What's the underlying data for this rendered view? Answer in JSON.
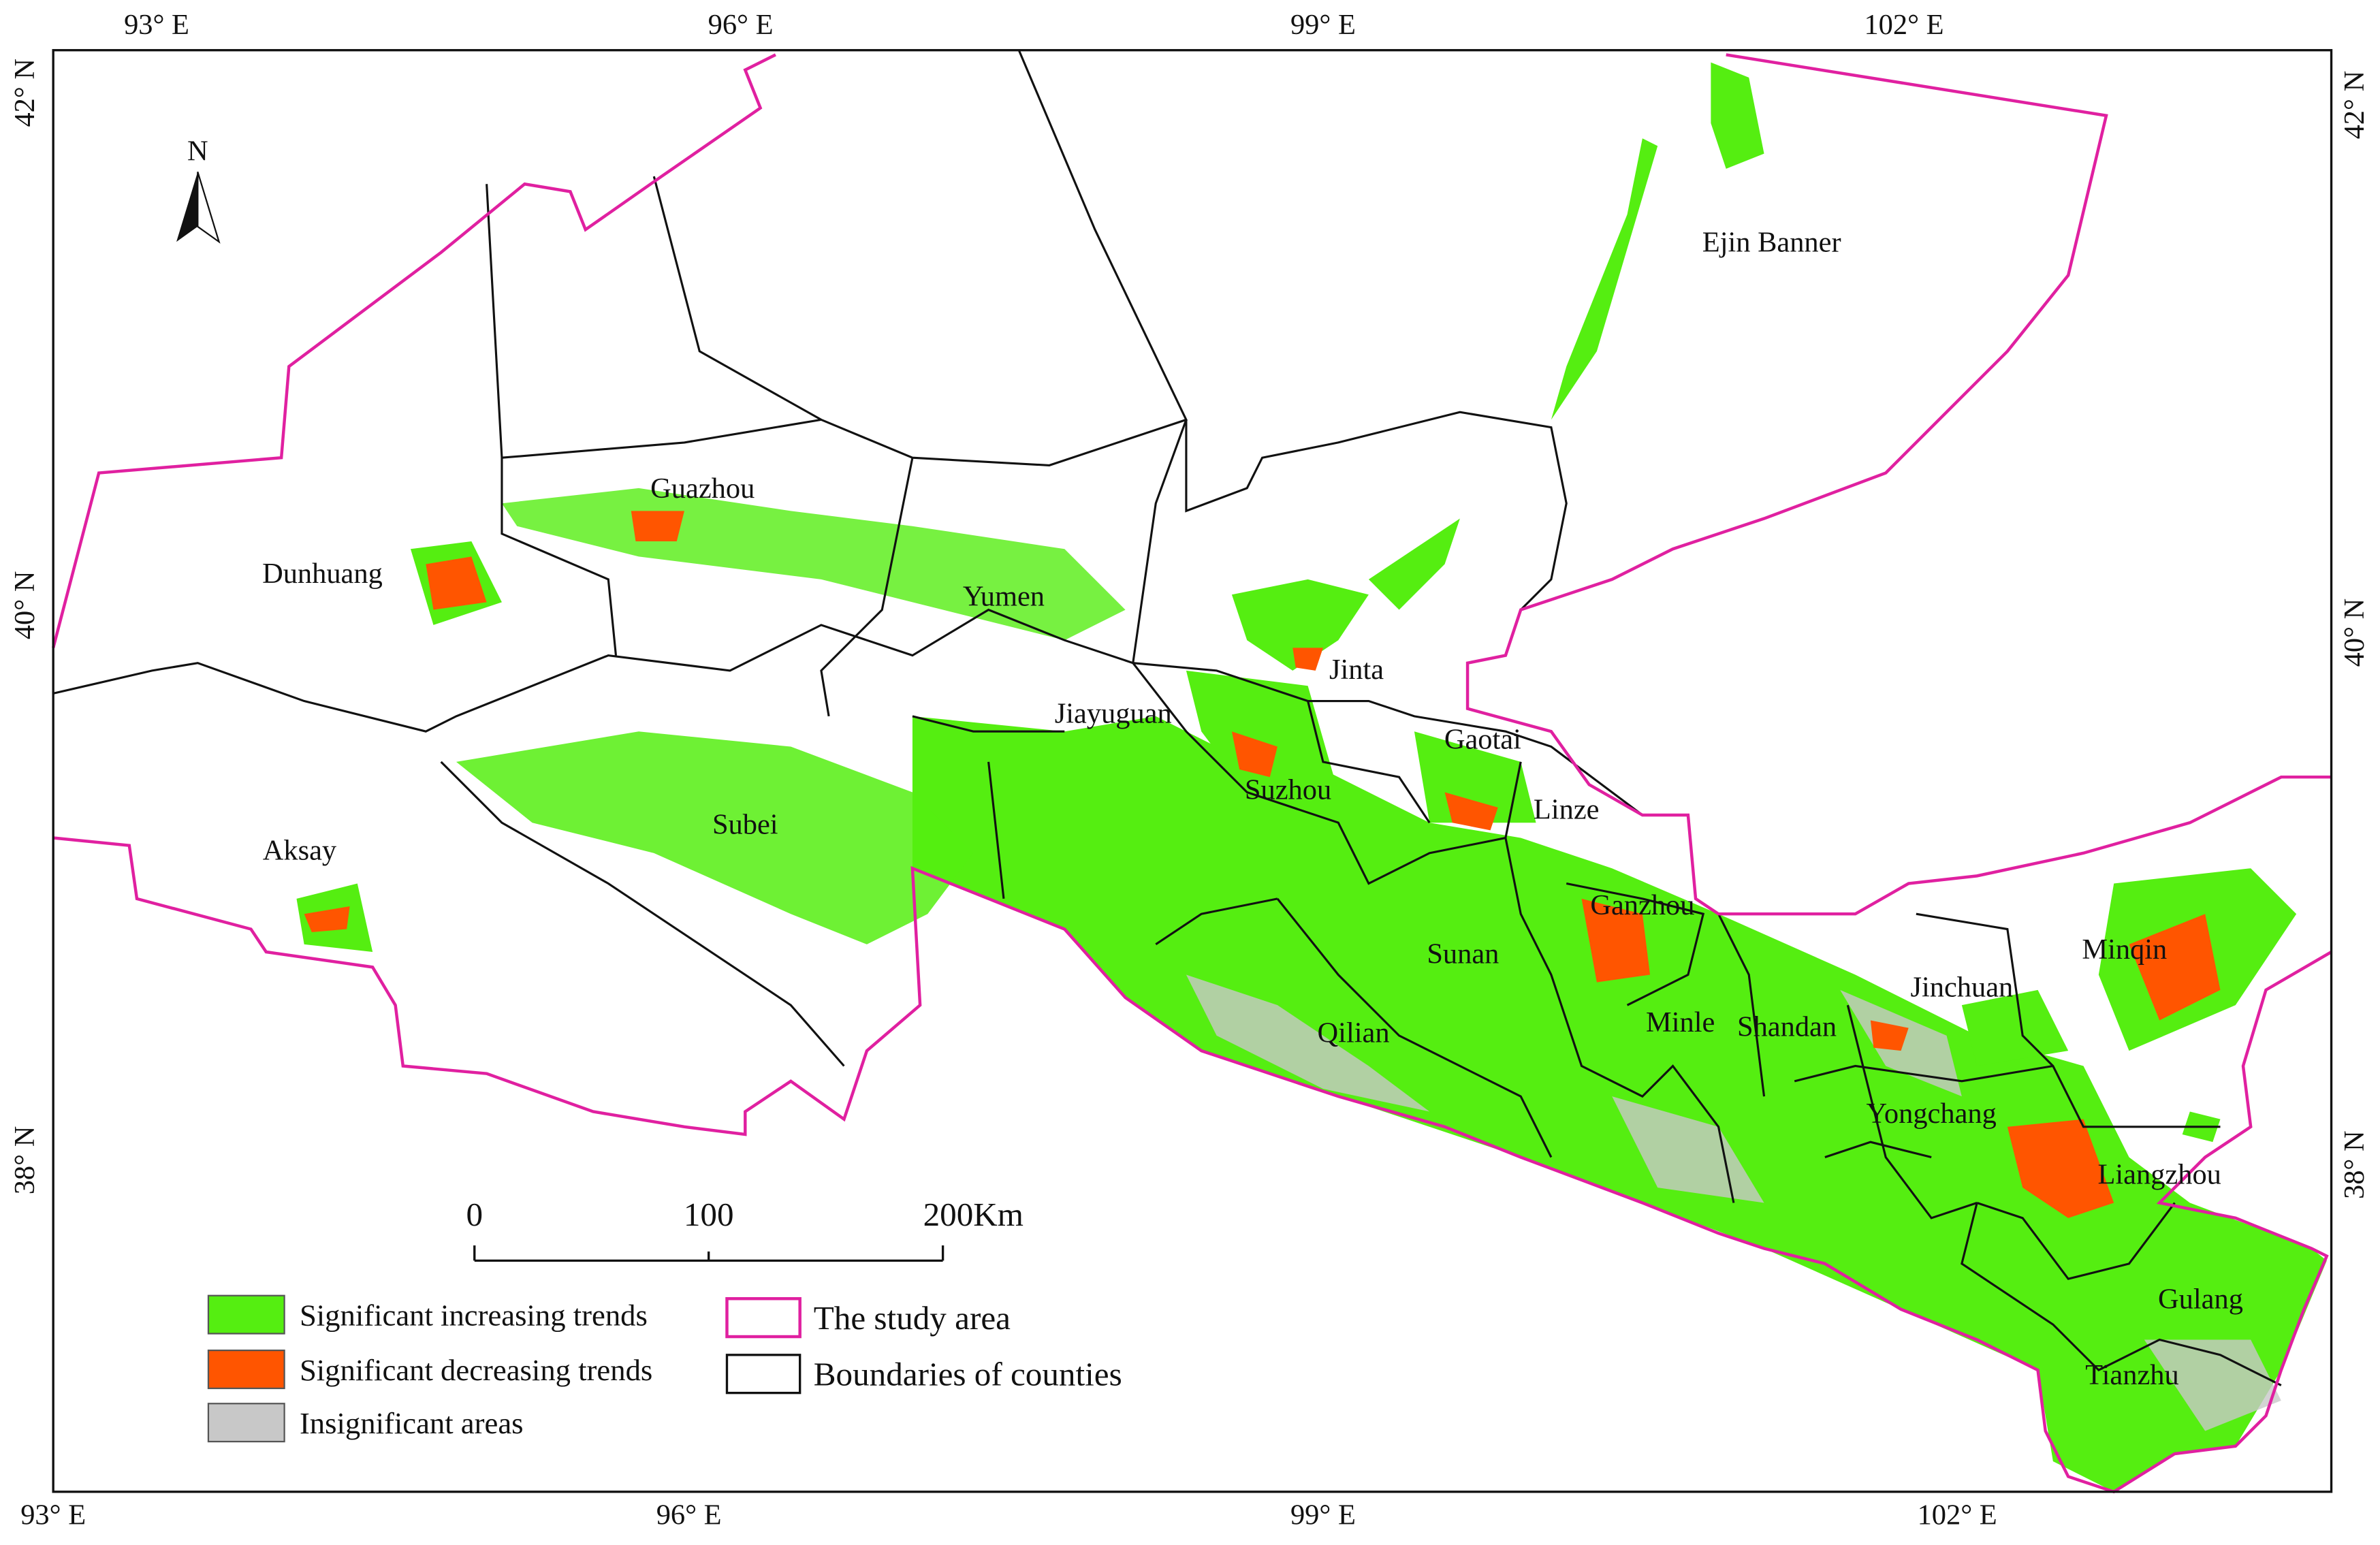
{
  "map": {
    "north_arrow": "N",
    "top_labels": [
      "93° E",
      "96° E",
      "99° E",
      "102° E"
    ],
    "bottom_labels": [
      "93° E",
      "96° E",
      "99° E",
      "102° E"
    ],
    "left_labels": [
      "42° N",
      "40° N",
      "38° N"
    ],
    "right_labels": [
      "42° N",
      "40° N",
      "38° N"
    ],
    "counties": [
      "Ejin Banner",
      "Guazhou",
      "Dunhuang",
      "Yumen",
      "Jinta",
      "Jiayuguan",
      "Gaotai",
      "Suzhou",
      "Linze",
      "Subei",
      "Aksay",
      "Ganzhou",
      "Sunan",
      "Minqin",
      "Jinchuan",
      "Qilian",
      "Minle",
      "Shandan",
      "Yongchang",
      "Liangzhou",
      "Gulang",
      "Tianzhu"
    ],
    "scale_labels": [
      "0",
      "100",
      "200Km"
    ],
    "legend": [
      "Significant increasing trends",
      "Significant decreasing trends",
      "Insignificant areas",
      "The study area",
      "Boundaries of counties"
    ]
  }
}
